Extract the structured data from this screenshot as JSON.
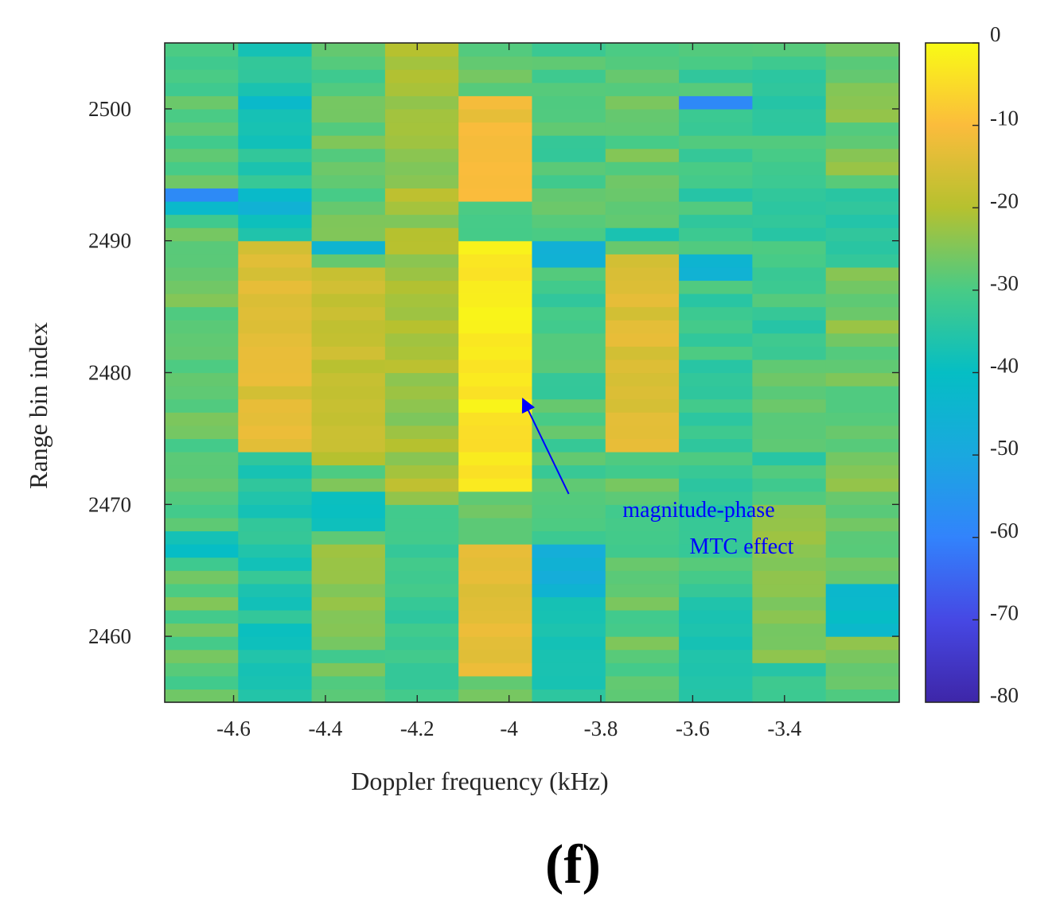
{
  "chart_data": {
    "type": "heatmap",
    "xlabel": "Doppler frequency (kHz)",
    "ylabel": "Range bin index",
    "panel_label": "(f)",
    "x_range": [
      -4.75,
      -3.15
    ],
    "y_range": [
      2455,
      2505
    ],
    "x_ticks": [
      -4.6,
      -4.4,
      -4.2,
      -4,
      -3.8,
      -3.6,
      -3.4
    ],
    "x_tick_labels": [
      "-4.6",
      "-4.4",
      "-4.2",
      "-4",
      "-3.8",
      "-3.6",
      "-3.4"
    ],
    "y_ticks": [
      2460,
      2470,
      2480,
      2490,
      2500
    ],
    "y_tick_labels": [
      "2460",
      "2470",
      "2480",
      "2490",
      "2500"
    ],
    "colorbar": {
      "range": [
        -80,
        0
      ],
      "ticks": [
        0,
        -10,
        -20,
        -30,
        -40,
        -50,
        -60,
        -70,
        -80
      ],
      "tick_labels": [
        "0",
        "-10",
        "-20",
        "-30",
        "-40",
        "-50",
        "-60",
        "-70",
        "-80"
      ],
      "colormap": "parula"
    },
    "x_bins_kHz": [
      -4.67,
      -4.51,
      -4.36,
      -4.2,
      -4.04,
      -3.89,
      -3.73,
      -3.58,
      -3.42,
      -3.26
    ],
    "y_bin_start": 2455,
    "y_bin_end": 2505,
    "y_bin_count": 50,
    "columns": [
      {
        "x": -4.67,
        "level_dB": -28,
        "features": [
          {
            "y_from": 2493,
            "y_to": 2494,
            "value": -58
          },
          {
            "y_from": 2492,
            "y_to": 2493,
            "value": -42
          },
          {
            "y_from": 2466,
            "y_to": 2467,
            "value": -42
          },
          {
            "y_from": 2467,
            "y_to": 2468,
            "value": -38
          }
        ]
      },
      {
        "x": -4.51,
        "level_dB": -36,
        "features": [
          {
            "y_from": 2474,
            "y_to": 2490,
            "value": -14
          },
          {
            "y_from": 2492,
            "y_to": 2494,
            "value": -44
          },
          {
            "y_from": 2500,
            "y_to": 2501,
            "value": -42
          }
        ]
      },
      {
        "x": -4.36,
        "level_dB": -28,
        "features": [
          {
            "y_from": 2473,
            "y_to": 2488,
            "value": -18
          },
          {
            "y_from": 2489,
            "y_to": 2490,
            "value": -44
          },
          {
            "y_from": 2468,
            "y_to": 2471,
            "value": -38
          },
          {
            "y_from": 2460,
            "y_to": 2467,
            "value": -24
          }
        ]
      },
      {
        "x": -4.2,
        "level_dB": -22,
        "features": [
          {
            "y_from": 2455,
            "y_to": 2470,
            "value": -32
          }
        ]
      },
      {
        "x": -4.04,
        "level_dB": -28,
        "features": [
          {
            "y_from": 2493,
            "y_to": 2501,
            "value": -12
          },
          {
            "y_from": 2471,
            "y_to": 2490,
            "value": -3
          },
          {
            "y_from": 2457,
            "y_to": 2467,
            "value": -14
          }
        ]
      },
      {
        "x": -3.89,
        "level_dB": -30,
        "features": [
          {
            "y_from": 2488,
            "y_to": 2490,
            "value": -46
          },
          {
            "y_from": 2463,
            "y_to": 2467,
            "value": -46
          },
          {
            "y_from": 2455,
            "y_to": 2463,
            "value": -36
          }
        ]
      },
      {
        "x": -3.73,
        "level_dB": -28,
        "features": [
          {
            "y_from": 2474,
            "y_to": 2489,
            "value": -14
          },
          {
            "y_from": 2490,
            "y_to": 2491,
            "value": -36
          }
        ]
      },
      {
        "x": -3.58,
        "level_dB": -32,
        "features": [
          {
            "y_from": 2500,
            "y_to": 2501,
            "value": -58
          },
          {
            "y_from": 2487,
            "y_to": 2489,
            "value": -46
          },
          {
            "y_from": 2455,
            "y_to": 2463,
            "value": -36
          }
        ]
      },
      {
        "x": -3.42,
        "level_dB": -32,
        "features": [
          {
            "y_from": 2474,
            "y_to": 2481,
            "value": -28
          },
          {
            "y_from": 2458,
            "y_to": 2470,
            "value": -24
          }
        ]
      },
      {
        "x": -3.26,
        "level_dB": -26,
        "features": [
          {
            "y_from": 2488,
            "y_to": 2494,
            "value": -34
          },
          {
            "y_from": 2460,
            "y_to": 2464,
            "value": -42
          }
        ]
      }
    ],
    "annotation": {
      "lines": [
        "magnitude-phase",
        "MTC effect"
      ],
      "color": "#0000ff",
      "arrow_from": {
        "x": -3.87,
        "y": 2470.8
      },
      "arrow_to": {
        "x": -3.97,
        "y": 2478
      }
    }
  }
}
